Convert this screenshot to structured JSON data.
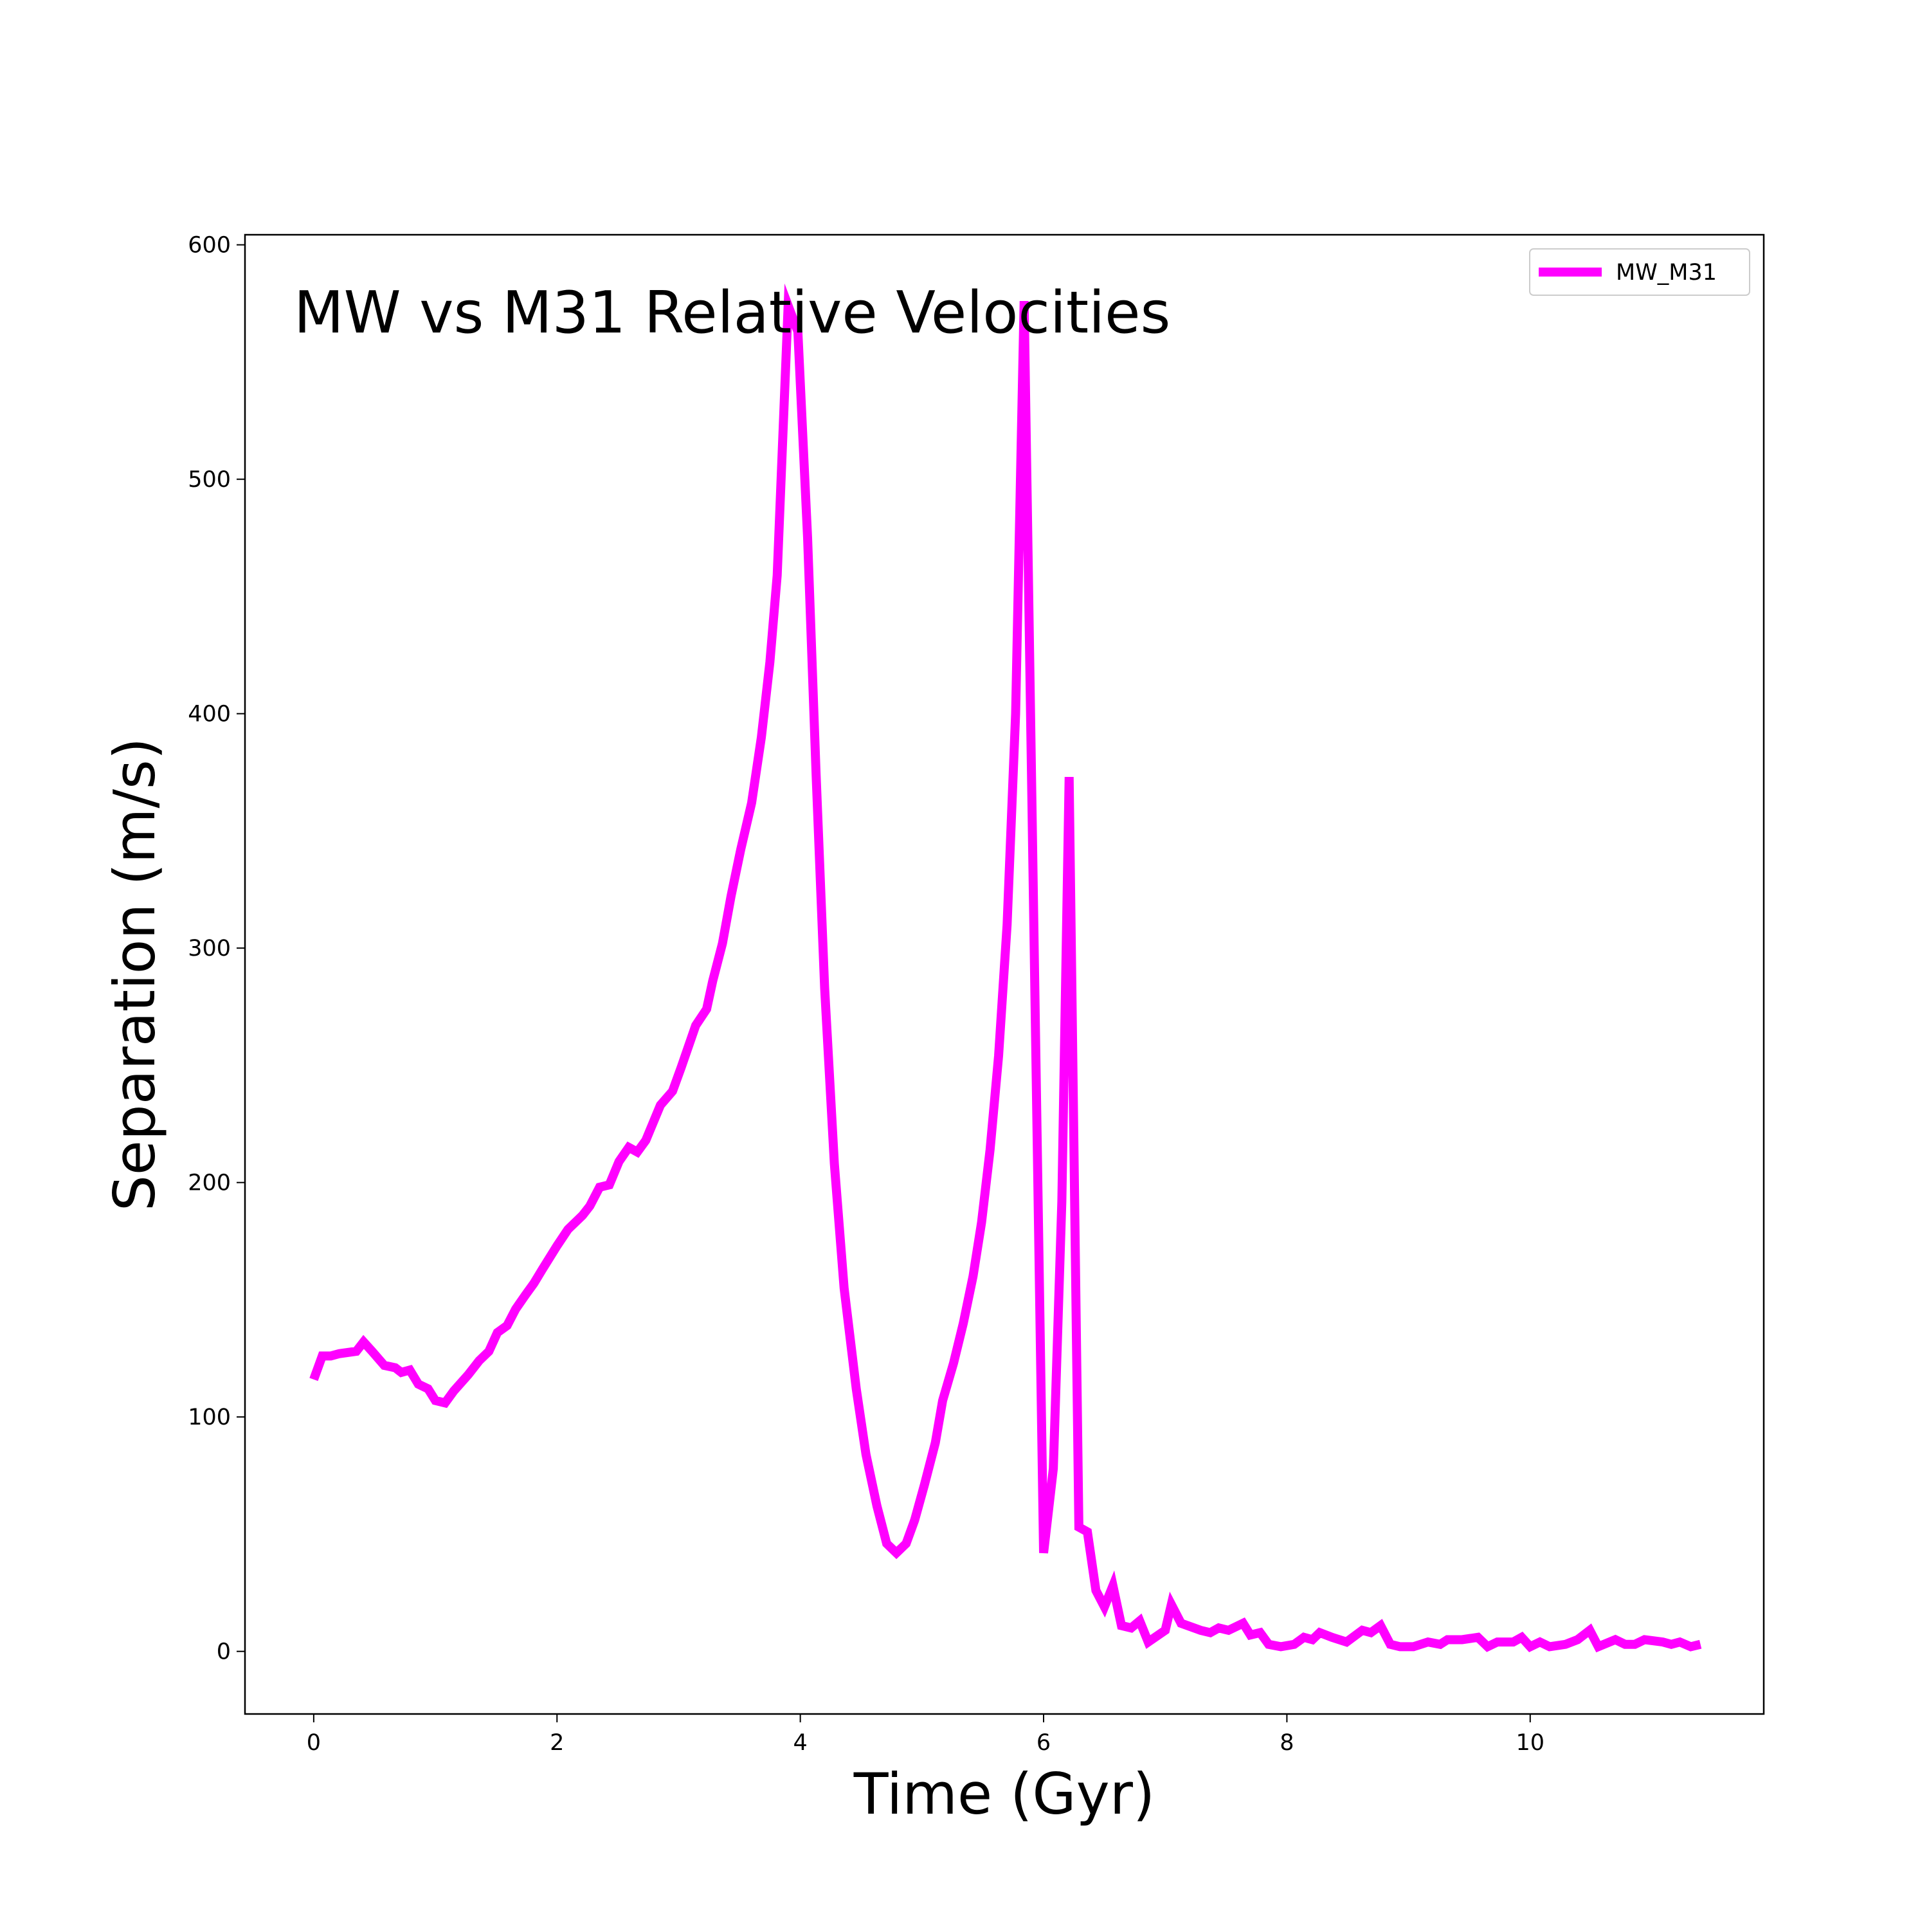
{
  "chart_data": {
    "type": "line",
    "title": "MW vs M31 Relative Velocities",
    "xlabel": "Time (Gyr)",
    "ylabel": "Separation (m/s)",
    "xlim": [
      -0.565,
      11.92
    ],
    "ylim": [
      -26.7,
      604.3
    ],
    "xticks": [
      0,
      2,
      4,
      6,
      8,
      10
    ],
    "yticks": [
      0,
      100,
      200,
      300,
      400,
      500,
      600
    ],
    "legend": "upper right",
    "x": [
      0,
      0.07,
      0.14,
      0.21,
      0.35,
      0.41,
      0.48,
      0.58,
      0.67,
      0.72,
      0.79,
      0.86,
      0.94,
      1.0,
      1.08,
      1.15,
      1.27,
      1.36,
      1.44,
      1.51,
      1.59,
      1.66,
      1.74,
      1.81,
      1.88,
      2.0,
      2.09,
      2.21,
      2.27,
      2.35,
      2.43,
      2.51,
      2.59,
      2.66,
      2.73,
      2.85,
      2.95,
      3.02,
      3.14,
      3.23,
      3.28,
      3.36,
      3.43,
      3.51,
      3.6,
      3.68,
      3.75,
      3.81,
      3.9,
      3.98,
      4.06,
      4.13,
      4.2,
      4.28,
      4.36,
      4.46,
      4.54,
      4.63,
      4.71,
      4.79,
      4.87,
      4.94,
      5.02,
      5.11,
      5.17,
      5.26,
      5.34,
      5.42,
      5.49,
      5.56,
      5.63,
      5.7,
      5.77,
      5.84,
      5.92,
      6.0,
      6.08,
      6.15,
      6.21,
      6.29,
      6.36,
      6.43,
      6.5,
      6.57,
      6.64,
      6.72,
      6.79,
      6.86,
      7.0,
      7.05,
      7.13,
      7.29,
      7.37,
      7.44,
      7.52,
      7.64,
      7.7,
      7.78,
      7.85,
      7.95,
      8.06,
      8.14,
      8.21,
      8.27,
      8.37,
      8.49,
      8.62,
      8.69,
      8.77,
      8.85,
      8.93,
      9.04,
      9.16,
      9.26,
      9.32,
      9.44,
      9.57,
      9.65,
      9.73,
      9.86,
      9.93,
      10.0,
      10.08,
      10.16,
      10.29,
      10.39,
      10.49,
      10.56,
      10.7,
      10.78,
      10.86,
      10.94,
      11.09,
      11.16,
      11.23,
      11.32,
      11.4
    ],
    "series": [
      {
        "name": "MW_M31",
        "color": "#ff00ff",
        "values": [
          116,
          126,
          126,
          127,
          128,
          132,
          128,
          122,
          121,
          119,
          120,
          114,
          112,
          107,
          106,
          111,
          118,
          124,
          128,
          136,
          139,
          146,
          152,
          157,
          163,
          173,
          180,
          186,
          190,
          198,
          199,
          209,
          215,
          213,
          218,
          233,
          239,
          249,
          267,
          274,
          286,
          302,
          322,
          342,
          362,
          390,
          422,
          459,
          574,
          563,
          475,
          374,
          283,
          208,
          155,
          112,
          84,
          62,
          46,
          42,
          46,
          56,
          71,
          89,
          107,
          123,
          140,
          160,
          183,
          214,
          254,
          310,
          400,
          576,
          309,
          42,
          78,
          192,
          373,
          53,
          51,
          26,
          19,
          28,
          11,
          10,
          13,
          4,
          9,
          20,
          12,
          9,
          8,
          10,
          9,
          12,
          7,
          8,
          3,
          2,
          3,
          6,
          5,
          8,
          6,
          4,
          9,
          8,
          11,
          3,
          2,
          2,
          4,
          3,
          5,
          5,
          6,
          2,
          4,
          4,
          6,
          2,
          4,
          2,
          3,
          5,
          9,
          2,
          5,
          3,
          3,
          5,
          4,
          3,
          4,
          2,
          3
        ]
      }
    ]
  }
}
